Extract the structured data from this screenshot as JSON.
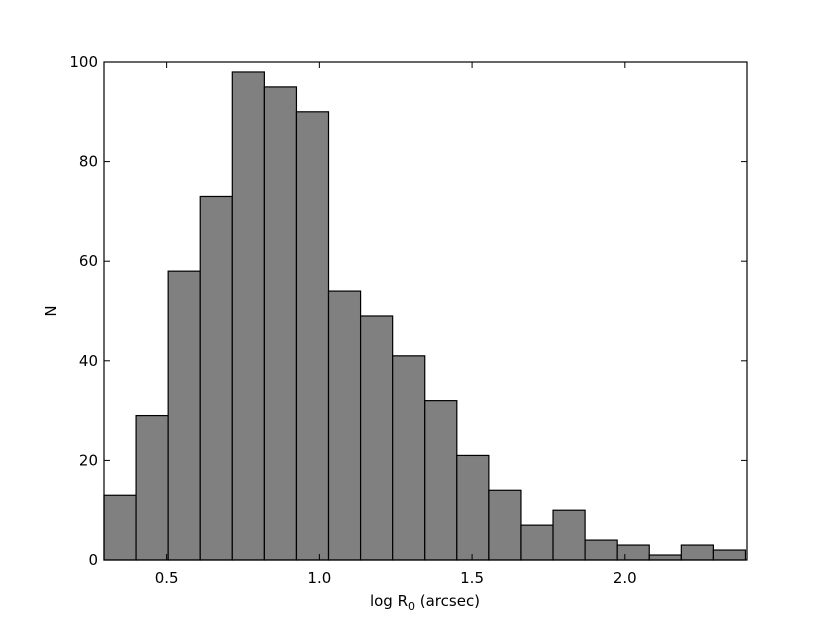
{
  "chart_data": {
    "type": "bar",
    "title": "",
    "xlabel_main": "log R",
    "xlabel_sub": "0",
    "xlabel_rest": " (arcsec)",
    "ylabel": "N",
    "xlim": [
      0.295,
      2.4
    ],
    "ylim": [
      0,
      100
    ],
    "bin_width": 0.105,
    "bin_start": 0.295,
    "values": [
      13,
      29,
      58,
      73,
      98,
      95,
      90,
      54,
      49,
      41,
      32,
      21,
      14,
      7,
      10,
      4,
      3,
      1,
      3,
      2
    ],
    "xticks": [
      0.5,
      1.0,
      1.5,
      2.0
    ],
    "xtick_labels": [
      "0.5",
      "1.0",
      "1.5",
      "2.0"
    ],
    "yticks": [
      0,
      20,
      40,
      60,
      80,
      100
    ],
    "ytick_labels": [
      "0",
      "20",
      "40",
      "60",
      "80",
      "100"
    ],
    "grid": false,
    "bar_color": "#808080",
    "edge_color": "#000000"
  }
}
